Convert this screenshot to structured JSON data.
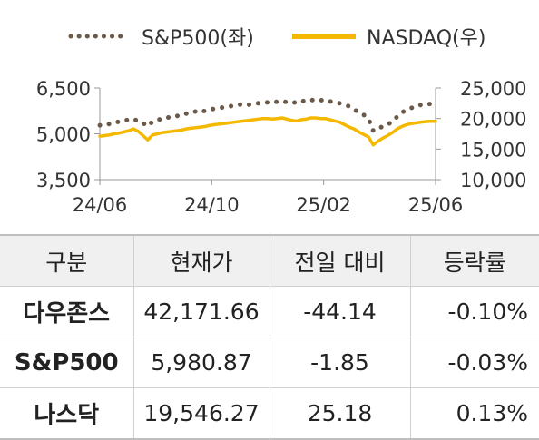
{
  "chart_data": {
    "type": "line",
    "legend": {
      "placement": "top",
      "entries": [
        "S&P500(좌)",
        "NASDAQ(우)"
      ]
    },
    "series": [
      {
        "name": "S&P500(좌)",
        "axis": "left",
        "color": "#6b5a4a",
        "style": "dotted",
        "values": [
          5280,
          5300,
          5320,
          5350,
          5400,
          5430,
          5460,
          5480,
          5420,
          5350,
          5250,
          5400,
          5460,
          5480,
          5530,
          5550,
          5580,
          5620,
          5660,
          5700,
          5730,
          5700,
          5760,
          5800,
          5820,
          5850,
          5870,
          5900,
          5920,
          5950,
          5980,
          5950,
          5990,
          6000,
          6010,
          6030,
          6040,
          6050,
          6060,
          6040,
          6050,
          6010,
          6070,
          6080,
          6110,
          6090,
          6100,
          6100,
          6060,
          6050,
          6000,
          5950,
          5900,
          5800,
          5700,
          5620,
          5500,
          5100,
          5150,
          5250,
          5300,
          5400,
          5560,
          5700,
          5780,
          5850,
          5900,
          5950,
          5970,
          5980,
          5981
        ]
      },
      {
        "name": "NASDAQ(우)",
        "axis": "right",
        "color": "#f5b800",
        "style": "solid",
        "values": [
          17100,
          17200,
          17300,
          17500,
          17600,
          17800,
          18000,
          18300,
          17900,
          17200,
          16500,
          17300,
          17500,
          17700,
          17800,
          17900,
          18000,
          18100,
          18300,
          18400,
          18500,
          18600,
          18700,
          18900,
          19000,
          19100,
          19200,
          19300,
          19400,
          19500,
          19600,
          19700,
          19800,
          19900,
          20000,
          20000,
          19900,
          20000,
          20100,
          19900,
          19700,
          19600,
          19800,
          19900,
          20100,
          20100,
          20000,
          20000,
          19800,
          19600,
          19400,
          19000,
          18600,
          18300,
          17800,
          17400,
          17000,
          15700,
          16300,
          16800,
          17200,
          17700,
          18300,
          18700,
          19000,
          19200,
          19300,
          19400,
          19500,
          19540,
          19546
        ]
      }
    ],
    "x_ticks": [
      "24/06",
      "24/10",
      "25/02",
      "25/06"
    ],
    "y_left": {
      "ticks": [
        "3,500",
        "5,000",
        "6,500"
      ],
      "values": [
        3500,
        5000,
        6500
      ],
      "range": [
        3500,
        6500
      ]
    },
    "y_right": {
      "ticks": [
        "10,000",
        "15,000",
        "20,000",
        "25,000"
      ],
      "values": [
        10000,
        15000,
        20000,
        25000
      ],
      "range": [
        10000,
        25000
      ]
    },
    "grid": false
  },
  "table": {
    "headers": [
      "구분",
      "현재가",
      "전일 대비",
      "등락률"
    ],
    "rows": [
      {
        "name": "다우존스",
        "price": "42,171.66",
        "change": "-44.14",
        "rate": "-0.10%"
      },
      {
        "name": "S&P500",
        "price": "5,980.87",
        "change": "-1.85",
        "rate": "-0.03%"
      },
      {
        "name": "나스닥",
        "price": "19,546.27",
        "change": "25.18",
        "rate": "0.13%"
      }
    ]
  }
}
